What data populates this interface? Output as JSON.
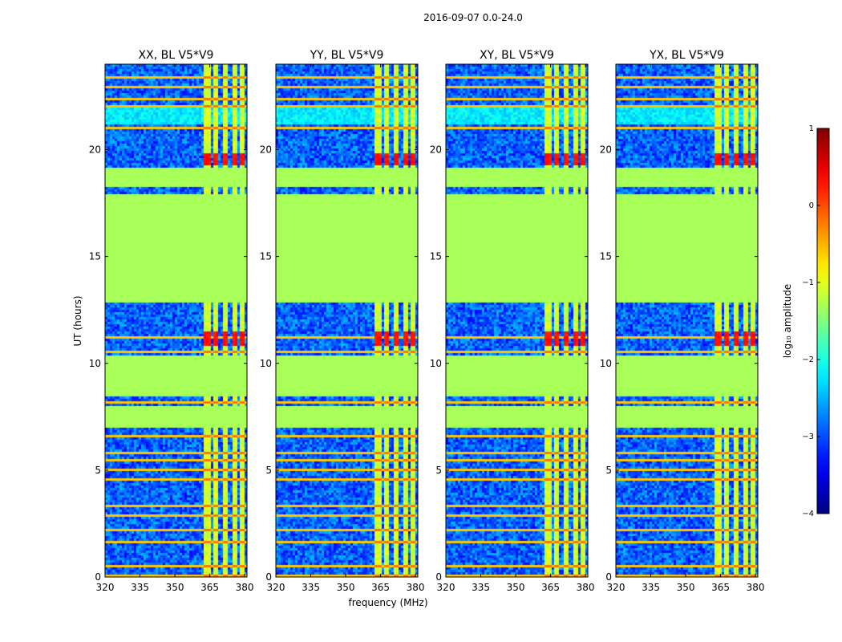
{
  "chart_data": {
    "type": "heatmap",
    "title": "2016-09-07 0.0-24.0",
    "xlabel": "frequency (MHz)",
    "ylabel": "UT (hours)",
    "xlim": [
      320,
      381
    ],
    "ylim": [
      0,
      24
    ],
    "xticks": [
      {
        "value": 320,
        "label": "320"
      },
      {
        "value": 335,
        "label": "335"
      },
      {
        "value": 350,
        "label": "350"
      },
      {
        "value": 365,
        "label": "365"
      },
      {
        "value": 380,
        "label": "380"
      }
    ],
    "yticks": [
      {
        "value": 0,
        "label": "0"
      },
      {
        "value": 5,
        "label": "5"
      },
      {
        "value": 10,
        "label": "10"
      },
      {
        "value": 15,
        "label": "15"
      },
      {
        "value": 20,
        "label": "20"
      }
    ],
    "panels": [
      {
        "title": "XX, BL V5*V9"
      },
      {
        "title": "YY, BL V5*V9"
      },
      {
        "title": "XY, BL V5*V9"
      },
      {
        "title": "YX, BL V5*V9"
      }
    ],
    "colorbar": {
      "label": "log₁₀ amplitude",
      "colormap": "jet",
      "vmin": -4,
      "vmax": 1,
      "ticks": [
        {
          "value": 1,
          "label": "1"
        },
        {
          "value": 0,
          "label": "0"
        },
        {
          "value": -1,
          "label": "−1"
        },
        {
          "value": -2,
          "label": "−2"
        },
        {
          "value": -3,
          "label": "−3"
        },
        {
          "value": -4,
          "label": "−4"
        }
      ]
    },
    "flagged_value": -1.3,
    "noise_level": -2.9,
    "flagged_ut_ranges": [
      [
        7.0,
        8.0
      ],
      [
        8.5,
        10.4
      ],
      [
        12.8,
        17.9
      ],
      [
        18.2,
        19.2
      ]
    ],
    "rfi_channel_ranges_mhz": [
      [
        362.5,
        365.5
      ],
      [
        367.0,
        369.0
      ],
      [
        370.5,
        372.5
      ],
      [
        374.5,
        376.5
      ],
      [
        378.0,
        380.0
      ]
    ],
    "rfi_ut_lines": [
      0.1,
      0.5,
      1.6,
      2.2,
      2.9,
      3.3,
      4.6,
      5.0,
      5.5,
      5.8,
      6.2,
      6.6,
      8.2,
      10.5,
      11.2,
      21.0,
      22.0,
      22.4,
      22.9,
      23.4
    ],
    "burst_ut_ranges": [
      [
        19.3,
        19.8
      ],
      [
        10.8,
        11.5
      ]
    ]
  }
}
